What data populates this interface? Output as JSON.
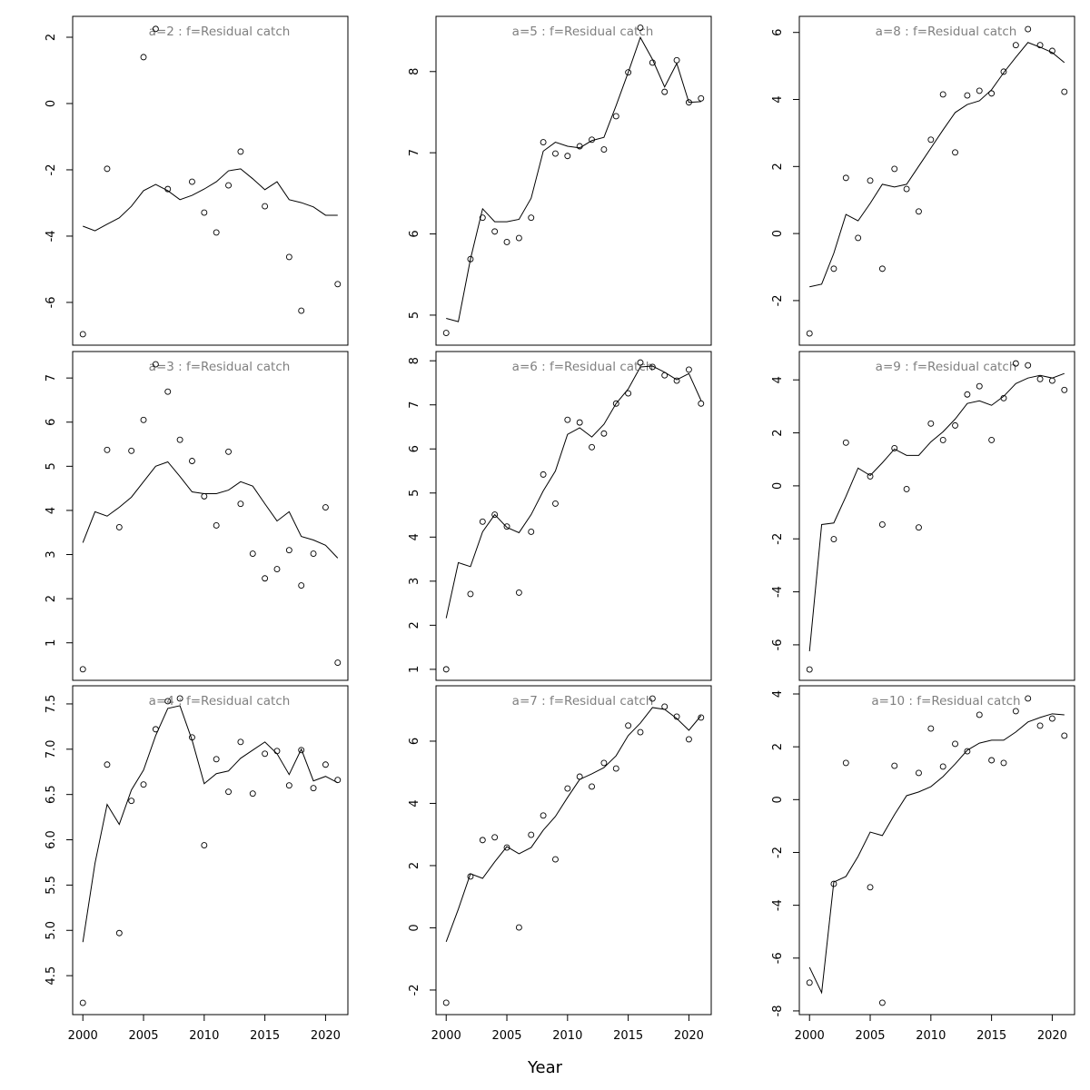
{
  "chart_data": [
    {
      "type": "line",
      "title": "a=2  :  f=Residual catch",
      "title_color": "#808080",
      "x": [
        2000,
        2001,
        2002,
        2003,
        2004,
        2005,
        2006,
        2007,
        2008,
        2009,
        2010,
        2011,
        2012,
        2013,
        2014,
        2015,
        2016,
        2017,
        2018,
        2019,
        2020,
        2021
      ],
      "xlim": [
        1999.16,
        2021.84
      ],
      "ylim": [
        -7.29,
        2.63
      ],
      "yticks": [
        -6,
        -4,
        -2,
        0,
        2
      ],
      "series": [
        {
          "style": "points",
          "color": "#000000",
          "values": [
            -6.96,
            null,
            -1.97,
            null,
            null,
            1.4,
            2.25,
            -2.58,
            null,
            -2.36,
            -3.29,
            -3.89,
            -2.47,
            -1.45,
            null,
            -3.1,
            null,
            -4.63,
            -6.25,
            null,
            null,
            -5.45
          ]
        },
        {
          "style": "line",
          "color": "#000000",
          "values": [
            -3.7,
            -3.84,
            -3.64,
            -3.45,
            -3.1,
            -2.63,
            -2.44,
            -2.63,
            -2.9,
            -2.77,
            -2.58,
            -2.36,
            -2.03,
            -1.97,
            -2.27,
            -2.6,
            -2.36,
            -2.9,
            -2.99,
            -3.12,
            -3.37,
            -3.37
          ]
        }
      ]
    },
    {
      "type": "line",
      "title": "a=3  :  f=Residual catch",
      "title_color": "#808080",
      "x": [
        2000,
        2001,
        2002,
        2003,
        2004,
        2005,
        2006,
        2007,
        2008,
        2009,
        2010,
        2011,
        2012,
        2013,
        2014,
        2015,
        2016,
        2017,
        2018,
        2019,
        2020,
        2021
      ],
      "xlim": [
        1999.16,
        2021.84
      ],
      "ylim": [
        0.15,
        7.6
      ],
      "yticks": [
        1,
        2,
        3,
        4,
        5,
        6,
        7
      ],
      "series": [
        {
          "style": "points",
          "color": "#000000",
          "values": [
            0.4,
            null,
            5.37,
            3.62,
            5.35,
            6.05,
            7.31,
            6.69,
            5.6,
            5.12,
            4.32,
            3.66,
            5.33,
            4.15,
            3.02,
            2.46,
            2.67,
            3.1,
            2.3,
            3.02,
            4.07,
            0.55
          ]
        },
        {
          "style": "line",
          "color": "#000000",
          "values": [
            3.27,
            3.97,
            3.87,
            4.07,
            4.3,
            4.65,
            5.0,
            5.1,
            4.77,
            4.42,
            4.38,
            4.38,
            4.46,
            4.65,
            4.55,
            4.15,
            3.76,
            3.97,
            3.41,
            3.33,
            3.21,
            2.92
          ]
        }
      ]
    },
    {
      "type": "line",
      "title": "a=4  :  f=Residual catch",
      "title_color": "#808080",
      "x": [
        2000,
        2001,
        2002,
        2003,
        2004,
        2005,
        2006,
        2007,
        2008,
        2009,
        2010,
        2011,
        2012,
        2013,
        2014,
        2015,
        2016,
        2017,
        2018,
        2019,
        2020,
        2021
      ],
      "xlim": [
        1999.16,
        2021.84
      ],
      "xticks": [
        2000,
        2005,
        2010,
        2015,
        2020
      ],
      "ylim": [
        4.07,
        7.7
      ],
      "yticks": [
        4.5,
        {
          "value": 5,
          "label": "5.0"
        },
        5.5,
        {
          "value": 6,
          "label": "6.0"
        },
        6.5,
        {
          "value": 7,
          "label": "7.0"
        },
        7.5
      ],
      "series": [
        {
          "style": "points",
          "color": "#000000",
          "values": [
            4.2,
            null,
            6.83,
            4.97,
            6.43,
            6.61,
            7.22,
            7.53,
            7.56,
            7.13,
            5.94,
            6.89,
            6.53,
            7.08,
            6.51,
            6.95,
            6.98,
            6.6,
            6.99,
            6.57,
            6.83,
            6.66
          ]
        },
        {
          "style": "line",
          "color": "#000000",
          "values": [
            4.87,
            5.74,
            6.39,
            6.17,
            6.55,
            6.77,
            7.15,
            7.45,
            7.48,
            7.1,
            6.62,
            6.73,
            6.76,
            6.9,
            6.99,
            7.08,
            6.95,
            6.72,
            7.0,
            6.65,
            6.7,
            6.63
          ]
        }
      ]
    },
    {
      "type": "line",
      "title": "a=5  :  f=Residual catch",
      "title_color": "#808080",
      "x": [
        2000,
        2001,
        2002,
        2003,
        2004,
        2005,
        2006,
        2007,
        2008,
        2009,
        2010,
        2011,
        2012,
        2013,
        2014,
        2015,
        2016,
        2017,
        2018,
        2019,
        2020,
        2021
      ],
      "xlim": [
        1999.16,
        2021.84
      ],
      "ylim": [
        4.63,
        8.68
      ],
      "yticks": [
        5,
        6,
        7,
        8
      ],
      "series": [
        {
          "style": "points",
          "color": "#000000",
          "values": [
            4.78,
            null,
            5.69,
            6.2,
            6.03,
            5.9,
            5.95,
            6.2,
            7.13,
            6.99,
            6.96,
            7.08,
            7.16,
            7.04,
            7.45,
            7.99,
            8.54,
            8.11,
            7.75,
            8.14,
            7.62,
            7.67
          ]
        },
        {
          "style": "line",
          "color": "#000000",
          "values": [
            4.96,
            4.92,
            5.69,
            6.31,
            6.15,
            6.15,
            6.18,
            6.44,
            7.02,
            7.13,
            7.08,
            7.06,
            7.15,
            7.19,
            7.58,
            7.99,
            8.42,
            8.15,
            7.81,
            8.1,
            7.62,
            7.63
          ]
        }
      ]
    },
    {
      "type": "line",
      "title": "a=6  :  f=Residual catch",
      "title_color": "#808080",
      "x": [
        2000,
        2001,
        2002,
        2003,
        2004,
        2005,
        2006,
        2007,
        2008,
        2009,
        2010,
        2011,
        2012,
        2013,
        2014,
        2015,
        2016,
        2017,
        2018,
        2019,
        2020,
        2021
      ],
      "xlim": [
        1999.16,
        2021.84
      ],
      "ylim": [
        0.75,
        8.21
      ],
      "yticks": [
        1,
        2,
        3,
        4,
        5,
        6,
        7,
        8
      ],
      "series": [
        {
          "style": "points",
          "color": "#000000",
          "values": [
            1.0,
            null,
            2.71,
            4.35,
            4.51,
            4.24,
            2.74,
            4.12,
            5.42,
            4.76,
            6.66,
            6.6,
            6.04,
            6.35,
            7.03,
            7.26,
            7.96,
            7.86,
            7.67,
            7.55,
            7.8,
            7.03
          ]
        },
        {
          "style": "line",
          "color": "#000000",
          "values": [
            2.16,
            3.42,
            3.33,
            4.12,
            4.51,
            4.22,
            4.1,
            4.51,
            5.05,
            5.5,
            6.33,
            6.48,
            6.27,
            6.56,
            7.03,
            7.36,
            7.86,
            7.88,
            7.74,
            7.57,
            7.71,
            7.1
          ]
        }
      ]
    },
    {
      "type": "line",
      "title": "a=7  :  f=Residual catch",
      "title_color": "#808080",
      "x": [
        2000,
        2001,
        2002,
        2003,
        2004,
        2005,
        2006,
        2007,
        2008,
        2009,
        2010,
        2011,
        2012,
        2013,
        2014,
        2015,
        2016,
        2017,
        2018,
        2019,
        2020,
        2021
      ],
      "xlim": [
        1999.16,
        2021.84
      ],
      "xticks": [
        2000,
        2005,
        2010,
        2015,
        2020
      ],
      "ylim": [
        -2.79,
        7.78
      ],
      "yticks": [
        -2,
        0,
        2,
        4,
        6
      ],
      "series": [
        {
          "style": "points",
          "color": "#000000",
          "values": [
            -2.41,
            null,
            1.65,
            2.82,
            2.91,
            2.58,
            0.01,
            2.99,
            3.61,
            2.2,
            4.48,
            4.86,
            4.54,
            5.3,
            5.12,
            6.5,
            6.29,
            7.37,
            7.11,
            6.79,
            6.06,
            6.76
          ]
        },
        {
          "style": "line",
          "color": "#000000",
          "values": [
            -0.45,
            0.6,
            1.74,
            1.59,
            2.12,
            2.61,
            2.38,
            2.58,
            3.14,
            3.58,
            4.19,
            4.77,
            4.95,
            5.15,
            5.53,
            6.18,
            6.58,
            7.08,
            7.02,
            6.73,
            6.35,
            6.82
          ]
        }
      ]
    },
    {
      "type": "line",
      "title": "a=8  :  f=Residual catch",
      "title_color": "#808080",
      "x": [
        2000,
        2001,
        2002,
        2003,
        2004,
        2005,
        2006,
        2007,
        2008,
        2009,
        2010,
        2011,
        2012,
        2013,
        2014,
        2015,
        2016,
        2017,
        2018,
        2019,
        2020,
        2021
      ],
      "xlim": [
        1999.16,
        2021.84
      ],
      "ylim": [
        -3.33,
        6.48
      ],
      "yticks": [
        -2,
        0,
        2,
        4,
        6
      ],
      "series": [
        {
          "style": "points",
          "color": "#000000",
          "values": [
            -2.98,
            null,
            -1.05,
            1.66,
            -0.13,
            1.58,
            -1.05,
            1.93,
            1.33,
            0.66,
            2.8,
            4.15,
            2.42,
            4.12,
            4.26,
            4.18,
            4.83,
            5.62,
            6.1,
            5.62,
            5.45,
            4.23
          ]
        },
        {
          "style": "line",
          "color": "#000000",
          "values": [
            -1.59,
            -1.51,
            -0.59,
            0.57,
            0.38,
            0.9,
            1.47,
            1.39,
            1.47,
            2.01,
            2.55,
            3.09,
            3.61,
            3.85,
            3.96,
            4.29,
            4.8,
            5.26,
            5.7,
            5.56,
            5.4,
            5.1
          ]
        }
      ]
    },
    {
      "type": "line",
      "title": "a=9  :  f=Residual catch",
      "title_color": "#808080",
      "x": [
        2000,
        2001,
        2002,
        2003,
        2004,
        2005,
        2006,
        2007,
        2008,
        2009,
        2010,
        2011,
        2012,
        2013,
        2014,
        2015,
        2016,
        2017,
        2018,
        2019,
        2020,
        2021
      ],
      "xlim": [
        1999.16,
        2021.84
      ],
      "ylim": [
        -7.34,
        5.07
      ],
      "yticks": [
        -6,
        -4,
        -2,
        0,
        2,
        4
      ],
      "series": [
        {
          "style": "points",
          "color": "#000000",
          "values": [
            -6.93,
            null,
            -2.01,
            1.63,
            null,
            0.36,
            -1.46,
            1.42,
            -0.12,
            -1.57,
            2.35,
            1.73,
            2.28,
            3.45,
            3.76,
            1.73,
            3.31,
            4.62,
            4.55,
            4.03,
            3.97,
            3.62
          ]
        },
        {
          "style": "line",
          "color": "#000000",
          "values": [
            -6.24,
            -1.46,
            -1.4,
            -0.4,
            0.67,
            0.39,
            0.87,
            1.39,
            1.15,
            1.15,
            1.66,
            2.04,
            2.52,
            3.11,
            3.21,
            3.04,
            3.38,
            3.86,
            4.07,
            4.17,
            4.07,
            4.24
          ]
        }
      ]
    },
    {
      "type": "line",
      "title": "a=10  :  f=Residual catch",
      "title_color": "#808080",
      "x": [
        2000,
        2001,
        2002,
        2003,
        2004,
        2005,
        2006,
        2007,
        2008,
        2009,
        2010,
        2011,
        2012,
        2013,
        2014,
        2015,
        2016,
        2017,
        2018,
        2019,
        2020,
        2021
      ],
      "xlim": [
        1999.16,
        2021.84
      ],
      "xticks": [
        2000,
        2005,
        2010,
        2015,
        2020
      ],
      "ylim": [
        -8.14,
        4.31
      ],
      "yticks": [
        -8,
        -6,
        -4,
        -2,
        0,
        2,
        4
      ],
      "series": [
        {
          "style": "points",
          "color": "#000000",
          "values": [
            -6.93,
            null,
            -3.19,
            1.39,
            null,
            -3.32,
            -7.69,
            1.28,
            null,
            1.01,
            2.69,
            1.25,
            2.11,
            1.83,
            3.21,
            1.49,
            1.39,
            3.35,
            3.83,
            2.8,
            3.07,
            2.42
          ]
        },
        {
          "style": "line",
          "color": "#000000",
          "values": [
            -6.35,
            -7.31,
            -3.12,
            -2.91,
            -2.15,
            -1.23,
            -1.36,
            -0.57,
            0.15,
            0.29,
            0.49,
            0.87,
            1.35,
            1.87,
            2.14,
            2.25,
            2.25,
            2.56,
            2.94,
            3.11,
            3.25,
            3.21
          ]
        }
      ]
    }
  ],
  "xlabel": "Year"
}
